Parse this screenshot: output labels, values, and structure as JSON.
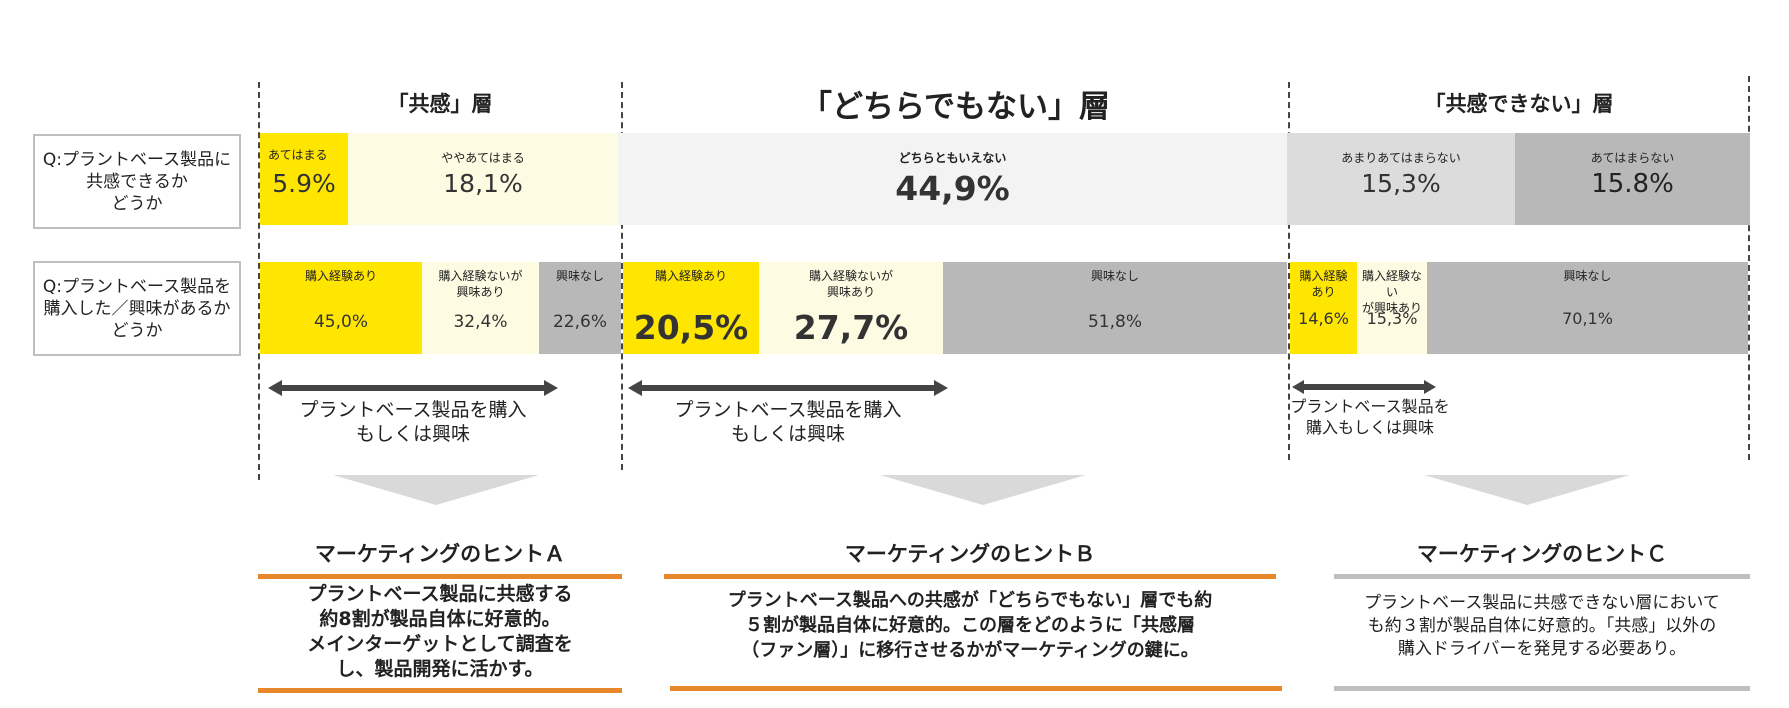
{
  "layers": {
    "sympathy": "「共感」層",
    "neutral": "「どちらでもない」層",
    "no_sympathy": "「共感できない」層"
  },
  "questions": {
    "q1": "Q:プラントベース製品に\n共感できるか\nどうか",
    "q2": "Q:プラントベース製品を\n購入した／興味があるか\nどうか"
  },
  "chart_data": [
    {
      "type": "bar",
      "orientation": "horizontal-stacked",
      "title": "Q:プラントベース製品に共感できるかどうか",
      "categories": [
        "あてはまる",
        "ややあてはまる",
        "どちらともいえない",
        "あまりあてはまらない",
        "あてはまらない"
      ],
      "values": [
        5.9,
        18.1,
        44.9,
        15.3,
        15.8
      ],
      "value_labels": [
        "5.9%",
        "18,1%",
        "44,9%",
        "15,3%",
        "15.8%"
      ],
      "colors": [
        "#ffe600",
        "#fefbe3",
        "#f3f3f3",
        "#dcdcdc",
        "#b8b8b8"
      ]
    },
    {
      "type": "bar",
      "orientation": "horizontal-stacked",
      "title": "Q:プラントベース製品を購入した／興味があるかどうか",
      "groups": [
        {
          "layer": "「共感」層",
          "categories": [
            "購入経験あり",
            "購入経験ないが\n興味あり",
            "興味なし"
          ],
          "values": [
            45.0,
            32.4,
            22.6
          ],
          "value_labels": [
            "45,0%",
            "32,4%",
            "22,6%"
          ],
          "colors": [
            "#ffe600",
            "#fefbe3",
            "#b8b8b8"
          ]
        },
        {
          "layer": "「どちらでもない」層",
          "categories": [
            "購入経験あり",
            "購入経験ないが\n興味あり",
            "興味なし"
          ],
          "values": [
            20.5,
            27.7,
            51.8
          ],
          "value_labels": [
            "20,5%",
            "27,7%",
            "51,8%"
          ],
          "colors": [
            "#ffe600",
            "#fefbe3",
            "#b8b8b8"
          ]
        },
        {
          "layer": "「共感できない」層",
          "categories": [
            "購入経験\nあり",
            "購入経験ない\nが興味あり",
            "興味なし"
          ],
          "values": [
            14.6,
            15.3,
            70.1
          ],
          "value_labels": [
            "14,6%",
            "15,3%",
            "70,1%"
          ],
          "colors": [
            "#ffe600",
            "#fefbe3",
            "#b8b8b8"
          ]
        }
      ]
    }
  ],
  "arrows": {
    "a": "プラントベース製品を購入\nもしくは興味",
    "b": "プラントベース製品を購入\nもしくは興味",
    "c": "プラントベース製品を\n購入もしくは興味"
  },
  "hints": {
    "a": {
      "title": "マーケティングのヒントＡ",
      "body": "プラントベース製品に共感する\n約8割が製品自体に好意的。\nメインターゲットとして調査を\nし、製品開発に活かす。",
      "accent": "#e8862a"
    },
    "b": {
      "title": "マーケティングのヒントＢ",
      "body": "プラントベース製品への共感が「どちらでもない」層でも約\n５割が製品自体に好意的。この層をどのように「共感層\n（ファン層）」に移行させるかがマーケティングの鍵に。",
      "accent": "#e8862a"
    },
    "c": {
      "title": "マーケティングのヒントＣ",
      "body": "プラントベース製品に共感できない層において\nも約３割が製品自体に好意的。「共感」以外の\n購入ドライバーを発見する必要あり。",
      "accent": "#bfbfbf"
    }
  }
}
